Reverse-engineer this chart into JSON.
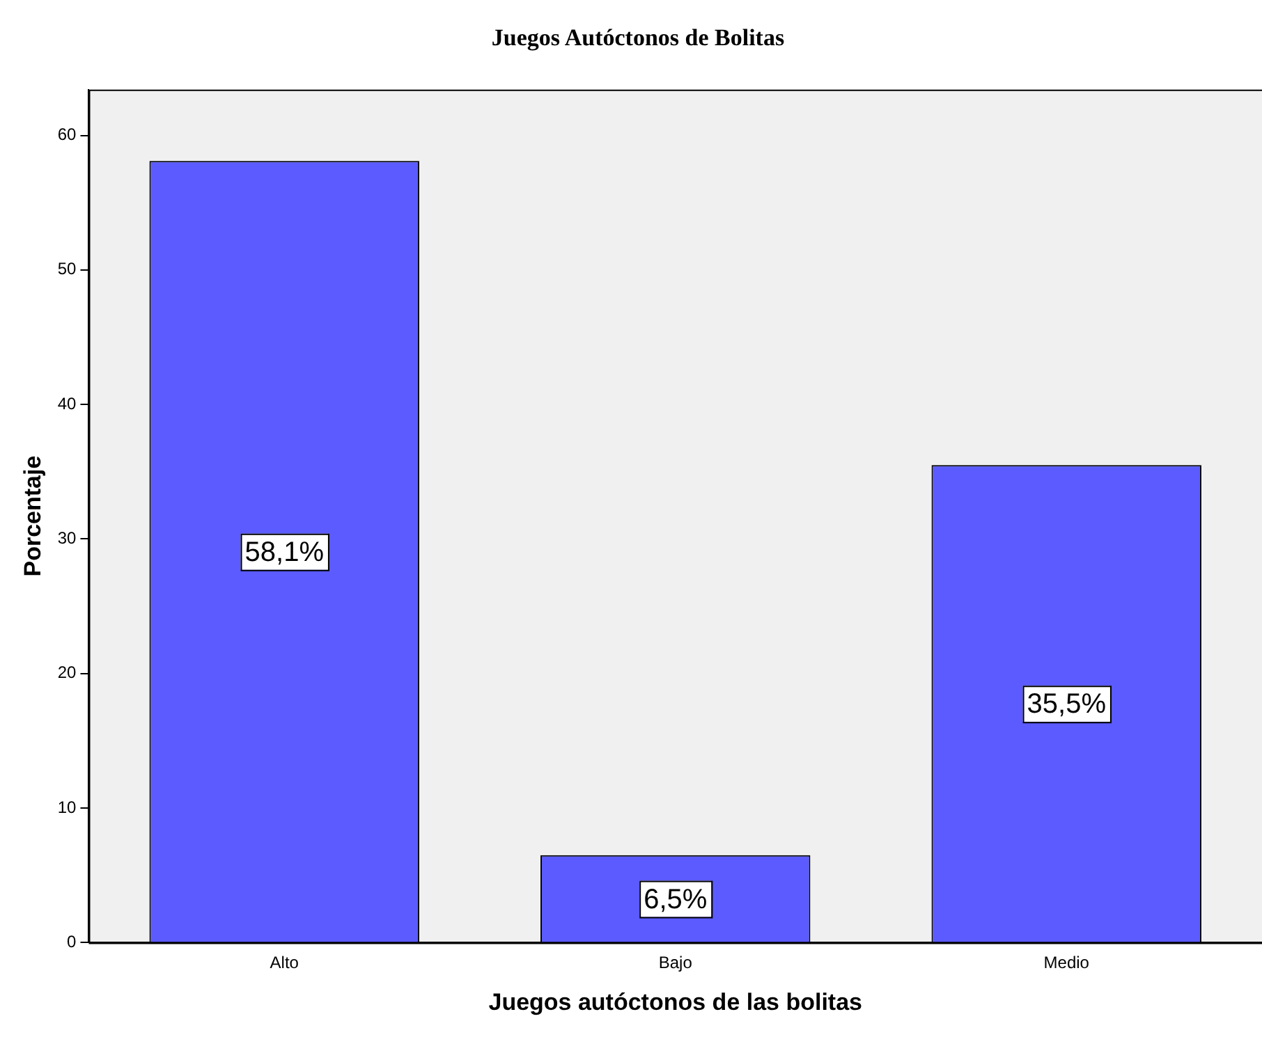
{
  "chart_data": {
    "type": "bar",
    "title": "Juegos Autóctonos de Bolitas",
    "xlabel": "Juegos autóctonos de las bolitas",
    "ylabel": "Porcentaje",
    "categories": [
      "Alto",
      "Bajo",
      "Medio"
    ],
    "values": [
      58.1,
      6.5,
      35.5
    ],
    "color": "#5b5bff",
    "value_labels": [
      "58,1%",
      "6,5%",
      "35,5%"
    ],
    "ylim": [
      0,
      63.4
    ],
    "yticks": [
      0,
      10,
      20,
      30,
      40,
      50,
      60
    ],
    "grid": false
  }
}
